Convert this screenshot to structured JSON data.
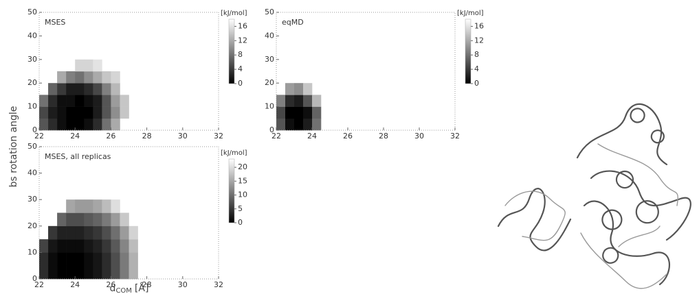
{
  "chart_data": [
    {
      "type": "heatmap",
      "title": "MSES",
      "ylabel": "bs rotation angle",
      "x_edges": [
        22,
        22.5,
        23,
        23.5,
        24,
        24.5,
        25,
        25.5,
        26,
        26.5,
        27,
        27.5,
        28
      ],
      "y_edges": [
        0,
        5,
        10,
        15,
        20,
        25,
        30
      ],
      "z": [
        [
          6,
          3,
          1,
          0,
          0,
          1,
          3,
          8,
          12,
          null,
          null,
          null
        ],
        [
          5,
          2,
          1,
          0,
          0,
          0,
          2,
          6,
          10,
          14,
          null,
          null
        ],
        [
          8,
          3,
          1,
          1,
          0,
          1,
          2,
          6,
          11,
          14,
          null,
          null
        ],
        [
          null,
          7,
          4,
          2,
          2,
          3,
          5,
          9,
          13,
          null,
          null,
          null
        ],
        [
          null,
          null,
          12,
          9,
          8,
          10,
          12,
          14,
          15,
          null,
          null,
          null
        ],
        [
          null,
          null,
          null,
          null,
          15,
          15,
          16,
          null,
          null,
          null,
          null,
          null
        ]
      ],
      "xlim": [
        22,
        32
      ],
      "ylim": [
        0,
        50
      ],
      "xticks": [
        22,
        24,
        26,
        28,
        30,
        32
      ],
      "yticks": [
        0,
        10,
        20,
        30,
        40,
        50
      ],
      "colorbar": {
        "label": "[kJ/mol]",
        "zlim": [
          0,
          18
        ],
        "ticks": [
          0,
          4,
          8,
          12,
          16
        ]
      }
    },
    {
      "type": "heatmap",
      "title": "eqMD",
      "x_edges": [
        22,
        22.5,
        23,
        23.5,
        24,
        24.5
      ],
      "y_edges": [
        0,
        5,
        10,
        15,
        20
      ],
      "z": [
        [
          6,
          1,
          0,
          2,
          8
        ],
        [
          5,
          0,
          0,
          1,
          7
        ],
        [
          9,
          3,
          2,
          6,
          13
        ],
        [
          null,
          11,
          10,
          14,
          null
        ]
      ],
      "xlim": [
        22,
        32
      ],
      "ylim": [
        0,
        50
      ],
      "xticks": [
        22,
        24,
        26,
        28,
        30,
        32
      ],
      "yticks": [
        0,
        10,
        20,
        30,
        40,
        50
      ],
      "colorbar": {
        "label": "[kJ/mol]",
        "zlim": [
          0,
          18
        ],
        "ticks": [
          0,
          4,
          8,
          12,
          16
        ]
      }
    },
    {
      "type": "heatmap",
      "title": "MSES, all replicas",
      "xlabel": {
        "main": "d",
        "sub": "COM",
        "unit": "[Å]"
      },
      "x_edges": [
        22,
        22.5,
        23,
        23.5,
        24,
        24.5,
        25,
        25.5,
        26,
        26.5,
        27,
        27.5,
        28
      ],
      "y_edges": [
        0,
        5,
        10,
        15,
        20,
        25,
        30
      ],
      "z": [
        [
          4,
          1,
          0,
          0,
          0,
          1,
          2,
          4,
          7,
          11,
          16,
          null
        ],
        [
          4,
          1,
          0,
          0,
          0,
          1,
          2,
          4,
          7,
          11,
          16,
          null
        ],
        [
          6,
          2,
          1,
          1,
          1,
          2,
          3,
          5,
          8,
          12,
          17,
          null
        ],
        [
          null,
          5,
          3,
          3,
          3,
          4,
          5,
          7,
          10,
          14,
          19,
          null
        ],
        [
          null,
          null,
          9,
          7,
          7,
          8,
          9,
          11,
          14,
          18,
          null,
          null
        ],
        [
          null,
          null,
          null,
          15,
          14,
          14,
          15,
          17,
          20,
          null,
          null,
          null
        ]
      ],
      "xlim": [
        22,
        32
      ],
      "ylim": [
        0,
        50
      ],
      "xticks": [
        22,
        24,
        26,
        28,
        30,
        32
      ],
      "yticks": [
        0,
        10,
        20,
        30,
        40,
        50
      ],
      "colorbar": {
        "label": "[kJ/mol]",
        "zlim": [
          0,
          23
        ],
        "ticks": [
          0,
          5,
          10,
          15,
          20
        ]
      }
    }
  ]
}
